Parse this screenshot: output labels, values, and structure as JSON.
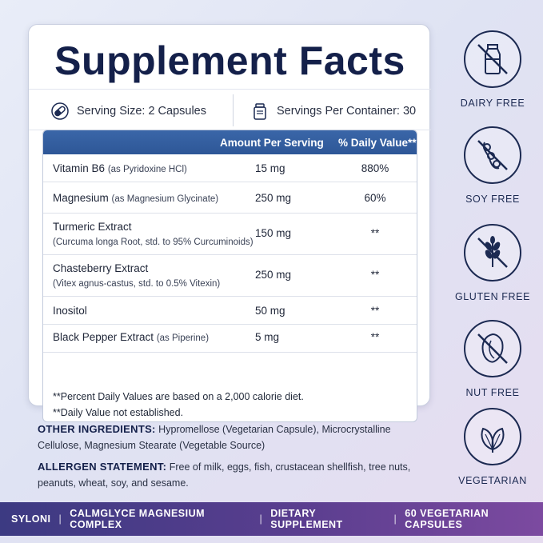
{
  "facts": {
    "title": "Supplement Facts",
    "serving_size": "Serving Size: 2 Capsules",
    "servings_per_container": "Servings Per Container: 30",
    "columns": {
      "amount": "Amount Per Serving",
      "daily_value": "% Daily Value**"
    },
    "rows": [
      {
        "name": "Vitamin B6",
        "sub": "(as Pyridoxine HCl)",
        "amount": "15 mg",
        "dv": "880%"
      },
      {
        "name": "Magnesium",
        "sub": "(as Magnesium Glycinate)",
        "amount": "250 mg",
        "dv": "60%"
      },
      {
        "name": "Turmeric Extract",
        "sub": "(Curcuma longa Root, std. to 95% Curcuminoids)",
        "amount": "150 mg",
        "dv": "**"
      },
      {
        "name": "Chasteberry Extract",
        "sub": "(Vitex agnus-castus, std. to 0.5% Vitexin)",
        "amount": "250 mg",
        "dv": "**"
      },
      {
        "name": "Inositol",
        "sub": "",
        "amount": "50 mg",
        "dv": "**"
      },
      {
        "name": "Black Pepper Extract",
        "sub": "(as Piperine)",
        "amount": "5 mg",
        "dv": "**"
      }
    ],
    "footnote_1": "**Percent Daily Values are based on a 2,000 calorie diet.",
    "footnote_2": "**Daily Value not established."
  },
  "other_ingredients": {
    "label": "OTHER INGREDIENTS:",
    "text": "Hypromellose (Vegetarian Capsule), Microcrystalline Cellulose, Magnesium Stearate (Vegetable Source)"
  },
  "allergen": {
    "label": "ALLERGEN STATEMENT:",
    "text": "Free of milk, eggs, fish, crustacean shellfish, tree nuts, peanuts, wheat, soy, and sesame."
  },
  "badges": [
    {
      "label": "DAIRY FREE",
      "icon": "milk-bottle-crossed-icon"
    },
    {
      "label": "SOY FREE",
      "icon": "soybean-crossed-icon"
    },
    {
      "label": "GLUTEN FREE",
      "icon": "wheat-crossed-icon"
    },
    {
      "label": "NUT FREE",
      "icon": "nut-crossed-icon"
    },
    {
      "label": "VEGETARIAN",
      "icon": "leaf-icon"
    }
  ],
  "footer": {
    "brand": "SYLONI",
    "product": "CALMGLYCE MAGNESIUM COMPLEX",
    "type": "DIETARY SUPPLEMENT",
    "count": "60 VEGETARIAN CAPSULES",
    "separator": "|"
  },
  "colors": {
    "navy": "#14204a",
    "header_blue": "#3a66a8",
    "footer_start": "#3c3a82",
    "footer_end": "#7c4aa0"
  }
}
